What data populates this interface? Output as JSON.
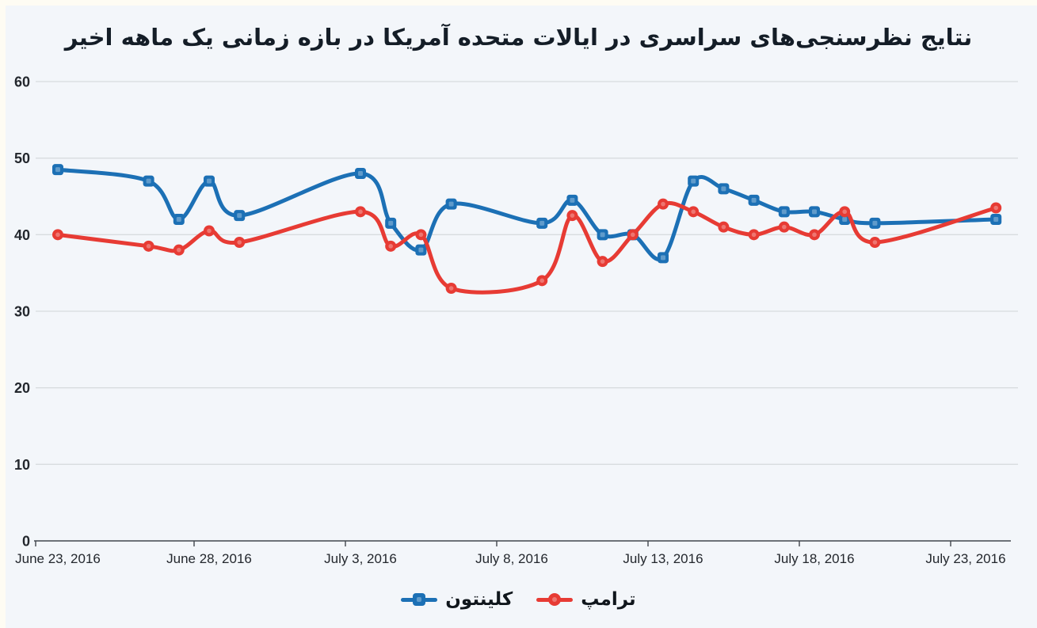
{
  "title": "نتایج نظرسنجی‌های سراسری در ایالات متحده آمریکا در بازه زمانی یک ماهه اخیر",
  "colors": {
    "clinton": "#1c70b5",
    "trump": "#e73b34",
    "background": "#f3f6fa",
    "edge_strip": "#fefcf3",
    "gridline": "#d8dcdf",
    "axis_line": "#41464c",
    "title_text": "#141d27",
    "tick_text": "#23272d",
    "legend_text": "#10161c"
  },
  "y_axis": {
    "min": 0,
    "max": 60,
    "step": 10,
    "tick_labels": [
      "0",
      "10",
      "20",
      "30",
      "40",
      "50",
      "60"
    ]
  },
  "x_axis": {
    "tick_labels": [
      "June 23, 2016",
      "June 28, 2016",
      "July 3, 2016",
      "July 8, 2016",
      "July 13, 2016",
      "July 18, 2016",
      "July 23, 2016"
    ],
    "tick_day_offsets": [
      0,
      5,
      10,
      15,
      20,
      25,
      30
    ]
  },
  "chart_data": {
    "type": "line",
    "title": "نتایج نظرسنجی‌های سراسری در ایالات متحده آمریکا در بازه زمانی یک ماهه اخیر",
    "xlabel": "",
    "ylabel": "",
    "ylim": [
      0,
      60
    ],
    "grid": "horizontal",
    "smoothing": "spline",
    "legend_position": "bottom",
    "x_start_date": "June 23, 2016",
    "dates": [
      "June 23",
      "June 26",
      "June 27",
      "June 28",
      "June 29",
      "July 3",
      "July 4",
      "July 5",
      "July 6",
      "July 9",
      "July 10",
      "July 11",
      "July 12",
      "July 13",
      "July 14",
      "July 15",
      "July 16",
      "July 17",
      "July 18",
      "July 19",
      "July 20",
      "July 24"
    ],
    "days_since_start": [
      0,
      3,
      4,
      5,
      6,
      10,
      11,
      12,
      13,
      16,
      17,
      18,
      19,
      20,
      21,
      22,
      23,
      24,
      25,
      26,
      27,
      31
    ],
    "series": [
      {
        "id": "clinton",
        "name": "کلینتون",
        "color": "#1c70b5",
        "marker": "square",
        "values": [
          48.5,
          47,
          42,
          47,
          42.5,
          48,
          41.5,
          38,
          44,
          41.5,
          44.5,
          40,
          40,
          37,
          47,
          46,
          44.5,
          43,
          43,
          42,
          41.5,
          42
        ]
      },
      {
        "id": "trump",
        "name": "ترامپ",
        "color": "#e73b34",
        "marker": "circle",
        "values": [
          40,
          38.5,
          38,
          40.5,
          39,
          43,
          38.5,
          40,
          33,
          34,
          42.5,
          36.5,
          40,
          44,
          43,
          41,
          40,
          41,
          40,
          43,
          39,
          43.5
        ]
      }
    ]
  }
}
